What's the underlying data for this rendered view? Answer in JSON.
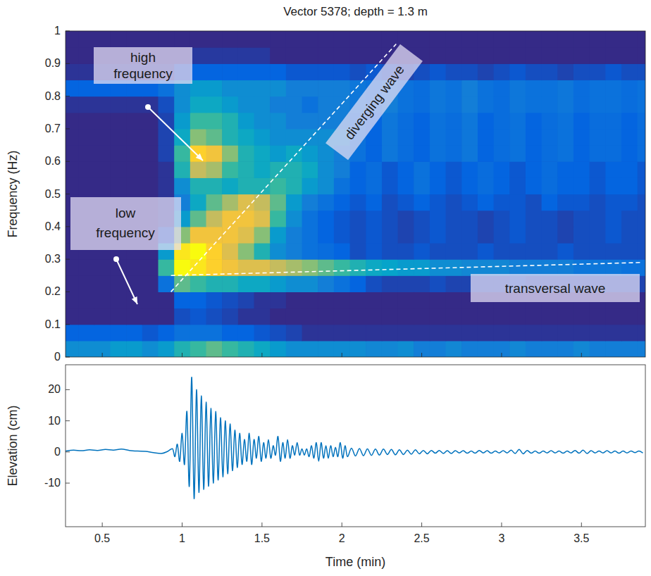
{
  "chart_data": [
    {
      "type": "heatmap",
      "title": "Vector 5378; depth = 1.3 m",
      "y_label": "Frequency (Hz)",
      "x": [
        0.3,
        0.4,
        0.5,
        0.6,
        0.7,
        0.8,
        0.9,
        1,
        1.1,
        1.2,
        1.3,
        1.4,
        1.5,
        1.6,
        1.7,
        1.8,
        1.9,
        2,
        2.1,
        2.2,
        2.3,
        2.4,
        2.5,
        2.6,
        2.7,
        2.8,
        2.9,
        3,
        3.1,
        3.2,
        3.3,
        3.4,
        3.5,
        3.6,
        3.7,
        3.8,
        3.9
      ],
      "y": [
        0.025,
        0.075,
        0.125,
        0.175,
        0.225,
        0.275,
        0.325,
        0.375,
        0.425,
        0.475,
        0.525,
        0.575,
        0.625,
        0.675,
        0.725,
        0.775,
        0.825,
        0.875,
        0.925,
        0.975
      ],
      "values": [
        [
          0.3,
          0.3,
          0.3,
          0.35,
          0.35,
          0.3,
          0.35,
          0.45,
          0.5,
          0.55,
          0.5,
          0.45,
          0.4,
          0.35,
          0.3,
          0.3,
          0.3,
          0.3,
          0.3,
          0.28,
          0.28,
          0.3,
          0.25,
          0.25,
          0.28,
          0.25,
          0.25,
          0.25,
          0.28,
          0.25,
          0.25,
          0.25,
          0.28,
          0.25,
          0.25,
          0.25,
          0.25
        ],
        [
          0.15,
          0.15,
          0.15,
          0.15,
          0.15,
          0.12,
          0.15,
          0.2,
          0.2,
          0.2,
          0.15,
          0.15,
          0.12,
          0.1,
          0.08,
          0.05,
          0.05,
          0.05,
          0.05,
          0.05,
          0.05,
          0.05,
          0.05,
          0.05,
          0.05,
          0.05,
          0.05,
          0.05,
          0.05,
          0.05,
          0.05,
          0.05,
          0.05,
          0.05,
          0.05,
          0.05,
          0.05
        ],
        [
          0.03,
          0.03,
          0.03,
          0.03,
          0.03,
          0.03,
          0.03,
          0.1,
          0.12,
          0.1,
          0.08,
          0.05,
          0.05,
          0.03,
          0.03,
          0.03,
          0.03,
          0.03,
          0.03,
          0.03,
          0.03,
          0.03,
          0.03,
          0.03,
          0.03,
          0.03,
          0.03,
          0.03,
          0.03,
          0.03,
          0.03,
          0.03,
          0.03,
          0.03,
          0.03,
          0.03,
          0.03
        ],
        [
          0.03,
          0.03,
          0.03,
          0.03,
          0.03,
          0.03,
          0.03,
          0.15,
          0.15,
          0.12,
          0.1,
          0.08,
          0.05,
          0.05,
          0.03,
          0.03,
          0.03,
          0.03,
          0.03,
          0.03,
          0.03,
          0.03,
          0.03,
          0.03,
          0.03,
          0.03,
          0.03,
          0.03,
          0.03,
          0.03,
          0.03,
          0.03,
          0.03,
          0.03,
          0.03,
          0.03,
          0.03
        ],
        [
          0.03,
          0.03,
          0.03,
          0.03,
          0.03,
          0.03,
          0.2,
          0.55,
          0.5,
          0.45,
          0.45,
          0.4,
          0.4,
          0.35,
          0.3,
          0.3,
          0.25,
          0.2,
          0.15,
          0.1,
          0.08,
          0.08,
          0.08,
          0.1,
          0.08,
          0.08,
          0.08,
          0.08,
          0.1,
          0.08,
          0.08,
          0.08,
          0.08,
          0.08,
          0.08,
          0.08,
          0.08
        ],
        [
          0.03,
          0.03,
          0.03,
          0.03,
          0.03,
          0.03,
          0.5,
          0.95,
          0.9,
          0.85,
          0.8,
          0.75,
          0.75,
          0.7,
          0.65,
          0.6,
          0.55,
          0.5,
          0.45,
          0.4,
          0.38,
          0.35,
          0.35,
          0.3,
          0.3,
          0.28,
          0.28,
          0.28,
          0.25,
          0.25,
          0.25,
          0.25,
          0.22,
          0.22,
          0.22,
          0.2,
          0.2
        ],
        [
          0.03,
          0.03,
          0.03,
          0.03,
          0.03,
          0.03,
          0.35,
          0.9,
          0.95,
          0.85,
          0.75,
          0.6,
          0.45,
          0.3,
          0.25,
          0.2,
          0.18,
          0.15,
          0.1,
          0.12,
          0.1,
          0.1,
          0.12,
          0.1,
          0.1,
          0.1,
          0.12,
          0.1,
          0.1,
          0.1,
          0.1,
          0.12,
          0.1,
          0.1,
          0.1,
          0.1,
          0.1
        ],
        [
          0.03,
          0.03,
          0.03,
          0.03,
          0.03,
          0.03,
          0.1,
          0.6,
          0.8,
          0.8,
          0.8,
          0.75,
          0.6,
          0.35,
          0.25,
          0.2,
          0.15,
          0.12,
          0.1,
          0.12,
          0.1,
          0.08,
          0.1,
          0.12,
          0.1,
          0.1,
          0.08,
          0.1,
          0.12,
          0.1,
          0.1,
          0.08,
          0.1,
          0.1,
          0.12,
          0.1,
          0.1
        ],
        [
          0.03,
          0.03,
          0.03,
          0.03,
          0.03,
          0.03,
          0.05,
          0.35,
          0.55,
          0.7,
          0.8,
          0.8,
          0.75,
          0.5,
          0.3,
          0.2,
          0.15,
          0.12,
          0.1,
          0.12,
          0.1,
          0.08,
          0.1,
          0.12,
          0.1,
          0.1,
          0.08,
          0.1,
          0.12,
          0.1,
          0.1,
          0.08,
          0.1,
          0.1,
          0.12,
          0.1,
          0.1
        ],
        [
          0.03,
          0.03,
          0.03,
          0.03,
          0.03,
          0.03,
          0.05,
          0.25,
          0.4,
          0.55,
          0.65,
          0.75,
          0.7,
          0.55,
          0.35,
          0.25,
          0.2,
          0.15,
          0.12,
          0.15,
          0.1,
          0.12,
          0.15,
          0.12,
          0.1,
          0.12,
          0.15,
          0.12,
          0.12,
          0.1,
          0.15,
          0.12,
          0.12,
          0.1,
          0.12,
          0.12,
          0.1
        ],
        [
          0.03,
          0.03,
          0.03,
          0.03,
          0.03,
          0.03,
          0.05,
          0.3,
          0.45,
          0.45,
          0.4,
          0.45,
          0.45,
          0.5,
          0.45,
          0.35,
          0.3,
          0.2,
          0.15,
          0.18,
          0.12,
          0.15,
          0.2,
          0.15,
          0.12,
          0.15,
          0.18,
          0.15,
          0.12,
          0.15,
          0.18,
          0.15,
          0.15,
          0.12,
          0.15,
          0.15,
          0.12
        ],
        [
          0.03,
          0.03,
          0.03,
          0.03,
          0.03,
          0.03,
          0.05,
          0.45,
          0.7,
          0.65,
          0.5,
          0.45,
          0.4,
          0.45,
          0.45,
          0.4,
          0.3,
          0.25,
          0.15,
          0.18,
          0.12,
          0.15,
          0.2,
          0.15,
          0.12,
          0.15,
          0.18,
          0.15,
          0.12,
          0.15,
          0.18,
          0.15,
          0.15,
          0.12,
          0.15,
          0.15,
          0.12
        ],
        [
          0.03,
          0.03,
          0.03,
          0.03,
          0.03,
          0.03,
          0.08,
          0.5,
          0.85,
          0.8,
          0.6,
          0.45,
          0.4,
          0.35,
          0.4,
          0.35,
          0.3,
          0.25,
          0.2,
          0.15,
          0.22,
          0.18,
          0.15,
          0.2,
          0.18,
          0.22,
          0.15,
          0.18,
          0.2,
          0.15,
          0.18,
          0.2,
          0.15,
          0.18,
          0.18,
          0.15,
          0.18
        ],
        [
          0.03,
          0.03,
          0.03,
          0.03,
          0.03,
          0.03,
          0.08,
          0.4,
          0.6,
          0.55,
          0.45,
          0.4,
          0.35,
          0.3,
          0.3,
          0.3,
          0.3,
          0.3,
          0.2,
          0.15,
          0.22,
          0.18,
          0.15,
          0.2,
          0.18,
          0.22,
          0.15,
          0.18,
          0.2,
          0.15,
          0.18,
          0.2,
          0.15,
          0.18,
          0.18,
          0.15,
          0.18
        ],
        [
          0.03,
          0.03,
          0.03,
          0.03,
          0.03,
          0.03,
          0.08,
          0.35,
          0.5,
          0.5,
          0.45,
          0.35,
          0.3,
          0.3,
          0.25,
          0.25,
          0.25,
          0.25,
          0.2,
          0.15,
          0.22,
          0.18,
          0.15,
          0.2,
          0.18,
          0.22,
          0.15,
          0.18,
          0.2,
          0.15,
          0.18,
          0.2,
          0.15,
          0.18,
          0.18,
          0.15,
          0.18
        ],
        [
          0.05,
          0.05,
          0.05,
          0.05,
          0.05,
          0.05,
          0.1,
          0.3,
          0.4,
          0.4,
          0.35,
          0.3,
          0.3,
          0.25,
          0.25,
          0.2,
          0.25,
          0.25,
          0.22,
          0.2,
          0.25,
          0.2,
          0.18,
          0.22,
          0.2,
          0.25,
          0.2,
          0.18,
          0.22,
          0.2,
          0.2,
          0.22,
          0.18,
          0.2,
          0.2,
          0.18,
          0.2
        ],
        [
          0.15,
          0.15,
          0.15,
          0.15,
          0.15,
          0.15,
          0.2,
          0.3,
          0.35,
          0.35,
          0.3,
          0.3,
          0.3,
          0.3,
          0.25,
          0.25,
          0.25,
          0.25,
          0.22,
          0.2,
          0.25,
          0.2,
          0.18,
          0.22,
          0.2,
          0.25,
          0.2,
          0.18,
          0.22,
          0.2,
          0.2,
          0.22,
          0.18,
          0.2,
          0.2,
          0.18,
          0.2
        ],
        [
          0.05,
          0.05,
          0.05,
          0.05,
          0.05,
          0.05,
          0.05,
          0.1,
          0.15,
          0.15,
          0.15,
          0.15,
          0.15,
          0.15,
          0.12,
          0.12,
          0.12,
          0.12,
          0.1,
          0.12,
          0.1,
          0.08,
          0.1,
          0.12,
          0.1,
          0.1,
          0.08,
          0.1,
          0.12,
          0.1,
          0.1,
          0.08,
          0.1,
          0.1,
          0.12,
          0.1,
          0.1
        ],
        [
          0.03,
          0.03,
          0.03,
          0.03,
          0.03,
          0.03,
          0.03,
          0.03,
          0.06,
          0.06,
          0.06,
          0.06,
          0.06,
          0.03,
          0.03,
          0.03,
          0.03,
          0.03,
          0.03,
          0.03,
          0.03,
          0.03,
          0.03,
          0.03,
          0.03,
          0.03,
          0.03,
          0.03,
          0.03,
          0.03,
          0.03,
          0.03,
          0.03,
          0.03,
          0.03,
          0.03,
          0.03
        ],
        [
          0.03,
          0.03,
          0.03,
          0.03,
          0.03,
          0.03,
          0.03,
          0.03,
          0.03,
          0.03,
          0.03,
          0.03,
          0.03,
          0.03,
          0.03,
          0.03,
          0.03,
          0.03,
          0.03,
          0.03,
          0.03,
          0.03,
          0.03,
          0.03,
          0.03,
          0.03,
          0.03,
          0.03,
          0.03,
          0.03,
          0.03,
          0.03,
          0.03,
          0.03,
          0.03,
          0.03,
          0.03
        ]
      ],
      "xlim": [
        0.27,
        3.9
      ],
      "ylim": [
        0,
        1
      ],
      "xticks": [
        0.5,
        1,
        1.5,
        2,
        2.5,
        3,
        3.5
      ],
      "yticks": [
        0,
        0.1,
        0.2,
        0.3,
        0.4,
        0.5,
        0.6,
        0.7,
        0.8,
        0.9,
        1
      ],
      "tick_labels": "y",
      "annotations": [
        {
          "text": "high frequency"
        },
        {
          "text": "low frequency"
        },
        {
          "text": "diverging wave",
          "x": [
            0.93,
            2.34
          ],
          "y": [
            0.2,
            0.96
          ]
        },
        {
          "text": "transversal wave",
          "x": [
            0.93,
            3.88
          ],
          "y": [
            0.25,
            0.29
          ]
        }
      ]
    },
    {
      "type": "line",
      "x_label": "Time (min)",
      "y_label": "Elevation (cm)",
      "color": "#0072bd",
      "x": [
        0.27,
        0.32,
        0.37,
        0.42,
        0.47,
        0.52,
        0.57,
        0.62,
        0.67,
        0.72,
        0.77,
        0.82,
        0.87,
        0.91,
        0.94,
        0.955,
        0.97,
        0.985,
        1,
        1.015,
        1.03,
        1.045,
        1.06,
        1.075,
        1.09,
        1.105,
        1.12,
        1.135,
        1.15,
        1.165,
        1.18,
        1.195,
        1.21,
        1.225,
        1.24,
        1.255,
        1.27,
        1.285,
        1.3,
        1.315,
        1.33,
        1.345,
        1.36,
        1.375,
        1.39,
        1.405,
        1.42,
        1.435,
        1.45,
        1.465,
        1.48,
        1.495,
        1.51,
        1.525,
        1.54,
        1.555,
        1.57,
        1.585,
        1.6,
        1.615,
        1.63,
        1.645,
        1.66,
        1.675,
        1.69,
        1.705,
        1.72,
        1.735,
        1.75,
        1.765,
        1.78,
        1.795,
        1.81,
        1.825,
        1.84,
        1.855,
        1.87,
        1.885,
        1.9,
        1.915,
        1.93,
        1.945,
        1.96,
        1.975,
        1.99,
        2.005,
        2.02,
        2.035,
        2.06,
        2.085,
        2.11,
        2.135,
        2.16,
        2.185,
        2.21,
        2.235,
        2.26,
        2.285,
        2.31,
        2.335,
        2.36,
        2.385,
        2.41,
        2.435,
        2.46,
        2.485,
        2.51,
        2.535,
        2.56,
        2.585,
        2.61,
        2.635,
        2.66,
        2.685,
        2.71,
        2.735,
        2.76,
        2.785,
        2.81,
        2.835,
        2.86,
        2.885,
        2.91,
        2.935,
        2.96,
        2.985,
        3.01,
        3.035,
        3.06,
        3.085,
        3.11,
        3.135,
        3.16,
        3.185,
        3.21,
        3.235,
        3.26,
        3.285,
        3.31,
        3.335,
        3.36,
        3.385,
        3.41,
        3.435,
        3.46,
        3.485,
        3.51,
        3.535,
        3.56,
        3.585,
        3.61,
        3.635,
        3.66,
        3.685,
        3.71,
        3.735,
        3.76,
        3.785,
        3.81,
        3.835,
        3.86,
        3.885
      ],
      "values": [
        0.3,
        0.6,
        0.4,
        0.7,
        0.5,
        0.8,
        0.6,
        0.9,
        0.5,
        0.3,
        0.2,
        -0.2,
        -0.5,
        0.2,
        1,
        -1.5,
        2.5,
        -3,
        6,
        -4,
        13,
        -11,
        24,
        -15,
        20,
        -13,
        18,
        -12,
        16,
        -11,
        14,
        -10,
        13,
        -9,
        11,
        -8,
        10,
        -7,
        9,
        -6,
        7,
        -5,
        6,
        -4,
        4,
        -3,
        6,
        -4,
        4,
        -2,
        5,
        -3,
        3,
        -2,
        4,
        -2,
        2,
        -1,
        5,
        -3,
        3,
        -2,
        4,
        -2,
        2,
        -1,
        3,
        -1,
        1,
        -1,
        1,
        -1.5,
        2,
        -2,
        3,
        -3,
        3,
        -2,
        2,
        -2,
        2,
        -1.5,
        1.5,
        -1.5,
        3,
        -2,
        2,
        -1.5,
        1.2,
        -1.3,
        1.1,
        -1.2,
        1,
        -1.1,
        0.9,
        -1,
        0.9,
        -0.8,
        0.8,
        -0.9,
        0.7,
        -0.8,
        0.6,
        -0.7,
        0.7,
        -0.6,
        0.5,
        -0.6,
        0.5,
        -0.4,
        0.5,
        -0.5,
        0.4,
        -0.5,
        0.4,
        -0.3,
        0.4,
        -0.4,
        0.3,
        -0.4,
        0.5,
        -0.3,
        0.4,
        -0.4,
        0.3,
        -0.3,
        0.4,
        -0.3,
        0.6,
        -0.5,
        0.8,
        -0.6,
        0.5,
        -0.4,
        0.3,
        -0.4,
        0.3,
        -0.3,
        0.4,
        -0.3,
        0.3,
        -0.4,
        0.3,
        -0.3,
        0.5,
        -0.4,
        0.6,
        -0.5,
        0.4,
        -0.3,
        0.3,
        -0.3,
        0.4,
        -0.3,
        0.3,
        -0.4,
        0.3,
        -0.3,
        0.3,
        -0.2,
        0.3,
        -0.3
      ],
      "xlim": [
        0.27,
        3.9
      ],
      "ylim": [
        -24,
        28
      ],
      "xticks": [
        0.5,
        1,
        1.5,
        2,
        2.5,
        3,
        3.5
      ],
      "yticks": [
        -10,
        0,
        10,
        20
      ]
    }
  ]
}
